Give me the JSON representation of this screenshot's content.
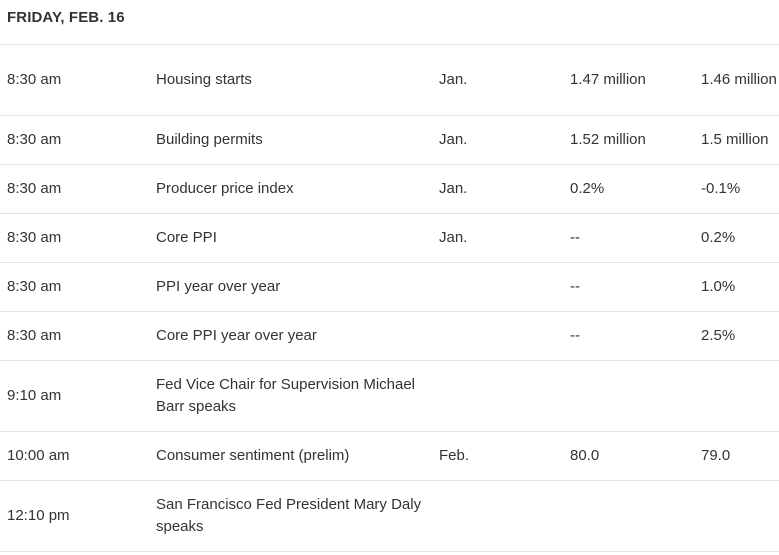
{
  "header": {
    "day": "FRIDAY, FEB. 16"
  },
  "rows": [
    {
      "time": "8:30 am",
      "event": "Housing starts",
      "period": "Jan.",
      "forecast": "1.47 million",
      "previous": "1.46 million"
    },
    {
      "time": "8:30 am",
      "event": "Building permits",
      "period": "Jan.",
      "forecast": "1.52 million",
      "previous": "1.5 million"
    },
    {
      "time": "8:30 am",
      "event": "Producer price index",
      "period": "Jan.",
      "forecast": "0.2%",
      "previous": "-0.1%"
    },
    {
      "time": "8:30 am",
      "event": "Core PPI",
      "period": "Jan.",
      "forecast": "--",
      "previous": "0.2%"
    },
    {
      "time": "8:30 am",
      "event": "PPI year over year",
      "period": "",
      "forecast": "--",
      "previous": "1.0%"
    },
    {
      "time": "8:30 am",
      "event": "Core PPI year over year",
      "period": "",
      "forecast": "--",
      "previous": "2.5%"
    },
    {
      "time": "9:10 am",
      "event": "Fed Vice Chair for Supervision Michael Barr speaks",
      "period": "",
      "forecast": "",
      "previous": ""
    },
    {
      "time": "10:00 am",
      "event": "Consumer sentiment (prelim)",
      "period": "Feb.",
      "forecast": "80.0",
      "previous": "79.0"
    },
    {
      "time": "12:10 pm",
      "event": "San Francisco Fed President Mary Daly speaks",
      "period": "",
      "forecast": "",
      "previous": ""
    }
  ]
}
